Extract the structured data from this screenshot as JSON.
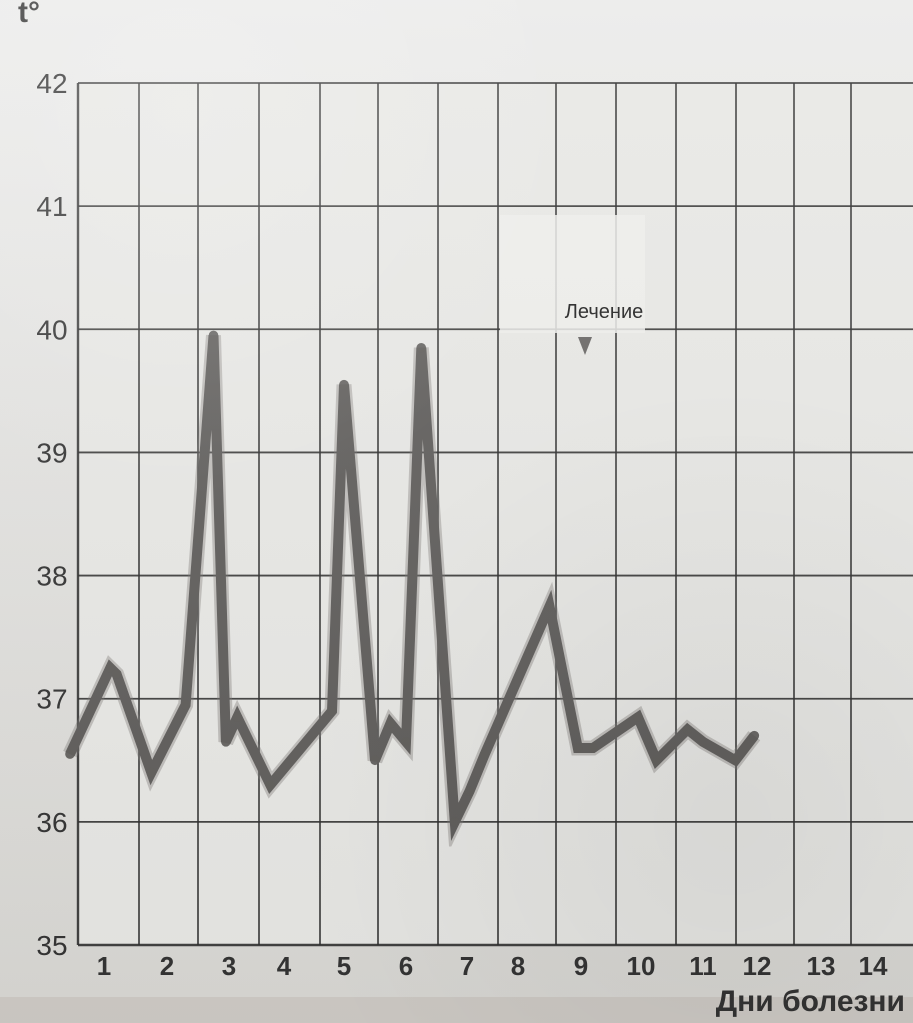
{
  "chart_data": {
    "type": "line",
    "title": "",
    "ylabel": "t°",
    "xlabel": "Дни болезни",
    "annotation": "Лечение",
    "ylim": [
      35,
      42
    ],
    "xlim": [
      0.5,
      15
    ],
    "grid": true,
    "y_ticks": [
      "35",
      "36",
      "37",
      "38",
      "39",
      "40",
      "41",
      "42"
    ],
    "x_ticks": [
      "1",
      "2",
      "3",
      "4",
      "5",
      "6",
      "7",
      "8",
      "9",
      "10",
      "11",
      "12",
      "13",
      "14"
    ],
    "x": [
      0.5,
      1.1,
      1.2,
      1.75,
      2.3,
      2.75,
      2.95,
      3.15,
      3.75,
      4.8,
      5.0,
      5.5,
      5.75,
      6.0,
      6.25,
      6.8,
      7.05,
      7.35,
      8.5,
      8.95,
      9.2,
      9.95,
      10.25,
      10.75,
      11.0,
      11.6,
      11.95
    ],
    "series": [
      {
        "values": [
          36.55,
          37.25,
          37.2,
          36.4,
          36.95,
          39.95,
          36.65,
          36.85,
          36.3,
          36.9,
          39.55,
          36.5,
          36.8,
          36.65,
          39.85,
          36.0,
          36.25,
          36.55,
          37.75,
          36.6,
          36.6,
          36.85,
          36.5,
          36.75,
          36.65,
          36.5,
          36.7
        ]
      }
    ],
    "colors": {
      "line": "#5f5d5b",
      "grid": "#2f2f2f",
      "background": "#e5e5e2",
      "text": "#333333"
    }
  }
}
